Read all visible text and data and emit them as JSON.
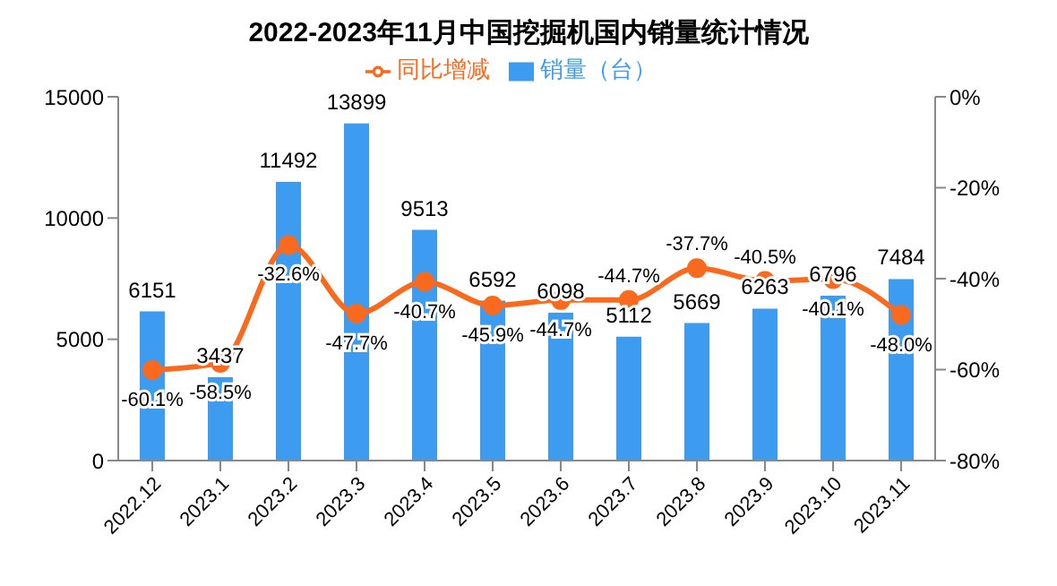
{
  "chart_data": {
    "type": "bar",
    "title": "2022-2023年11月中国挖掘机国内销量统计情况",
    "categories": [
      "2022.12",
      "2023.1",
      "2023.2",
      "2023.3",
      "2023.4",
      "2023.5",
      "2023.6",
      "2023.7",
      "2023.8",
      "2023.9",
      "2023.10",
      "2023.11"
    ],
    "series": [
      {
        "name": "销量（台）",
        "color": "#3d9cf0",
        "values": [
          6151,
          3437,
          11492,
          13899,
          9513,
          6592,
          6098,
          5112,
          5669,
          6263,
          6796,
          7484
        ],
        "value_labels": [
          "6151",
          "3437",
          "11492",
          "13899",
          "9513",
          "6592",
          "6098",
          "5112",
          "5669",
          "6263",
          "6796",
          "7484"
        ]
      },
      {
        "name": "同比增减",
        "type": "line",
        "axis": "y2",
        "color": "#fa6a1e",
        "values": [
          -60.1,
          -58.5,
          -32.6,
          -47.7,
          -40.7,
          -45.9,
          -44.7,
          -44.7,
          -37.7,
          -40.5,
          -40.1,
          -48.0
        ],
        "value_labels": [
          "-60.1%",
          "-58.5%",
          "-32.6%",
          "-47.7%",
          "-40.7%",
          "-45.9%",
          "-44.7%",
          "-44.7%",
          "-37.7%",
          "-40.5%",
          "-40.1%",
          "-48.0%"
        ]
      }
    ],
    "ylim": [
      0,
      15000
    ],
    "yticks": [
      0,
      5000,
      10000,
      15000
    ],
    "y2lim": [
      -80,
      0
    ],
    "y2ticks": [
      {
        "value": -80,
        "label": "-80%"
      },
      {
        "value": -60,
        "label": "-60%"
      },
      {
        "value": -40,
        "label": "-40%"
      },
      {
        "value": -20,
        "label": "-20%"
      },
      {
        "value": 0,
        "label": "0%"
      }
    ],
    "legend": "top",
    "grid": false,
    "marker": "circle",
    "line_style": "solid"
  }
}
